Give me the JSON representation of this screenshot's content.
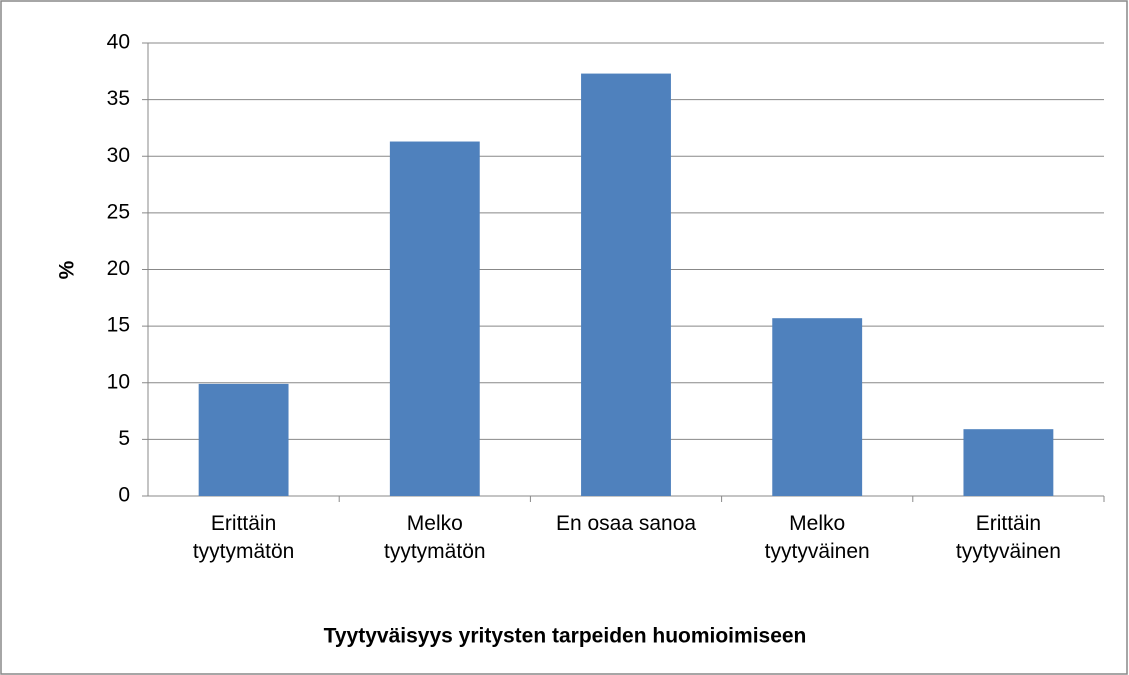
{
  "chart_data": {
    "type": "bar",
    "x_label": "Tyytyväisyys yritysten tarpeiden huomioimiseen",
    "y_label": "%",
    "categories": [
      "Erittäin\ntyytymätön",
      "Melko\ntyytymätön",
      "En osaa sanoa",
      "Melko\ntyytyväinen",
      "Erittäin\ntyytyväinen"
    ],
    "values": [
      9.9,
      31.3,
      37.3,
      15.7,
      5.9
    ],
    "color": "#4f81bd",
    "ylim": [
      0,
      40
    ],
    "yticks": [
      0,
      5,
      10,
      15,
      20,
      25,
      30,
      35,
      40
    ],
    "grid": true
  }
}
